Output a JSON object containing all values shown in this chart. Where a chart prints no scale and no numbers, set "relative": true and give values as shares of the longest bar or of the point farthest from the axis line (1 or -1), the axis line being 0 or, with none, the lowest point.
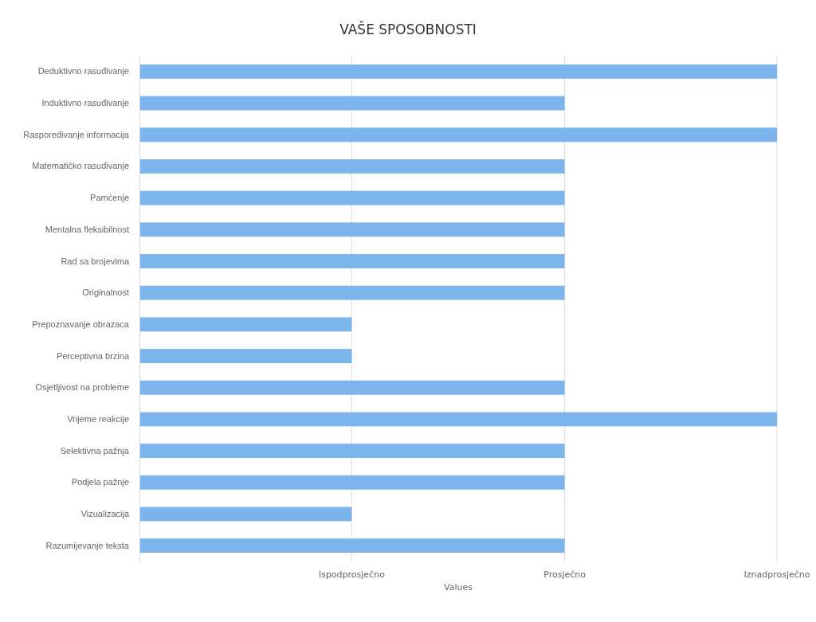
{
  "chart_data": {
    "type": "bar",
    "orientation": "horizontal",
    "title": "VAŠE SPOSOBNOSTI",
    "xlabel": "Values",
    "relative": true,
    "categories": [
      "Deduktivno rasuđivanje",
      "Induktivno rasuđivanje",
      "Raspoređivanje informacija",
      "Matematičko rasuđivanje",
      "Pamćenje",
      "Mentalna fleksibilnost",
      "Rad sa brojevima",
      "Originalnost",
      "Prepoznavanje obrazaca",
      "Perceptivna brzina",
      "Osjetljivost na probleme",
      "Vrijeme reakcije",
      "Selektivna pažnja",
      "Podjela pažnje",
      "Vizualizacija",
      "Razumijevanje teksta"
    ],
    "values": [
      1,
      0.667,
      1,
      0.667,
      0.667,
      0.667,
      0.667,
      0.667,
      0.333,
      0.333,
      0.667,
      1,
      0.667,
      0.667,
      0.333,
      0.667
    ],
    "color": "#7cb5ec",
    "ref_lines": [
      {
        "axis": "x",
        "value": 0.333,
        "label": "Ispodprosječno",
        "color": "#dcdcdc"
      },
      {
        "axis": "x",
        "value": 0.667,
        "label": "Prosječno",
        "color": "#dcdcdc"
      },
      {
        "axis": "x",
        "value": 1,
        "label": "Iznadprosječno",
        "color": "#dcdcdc"
      }
    ]
  }
}
